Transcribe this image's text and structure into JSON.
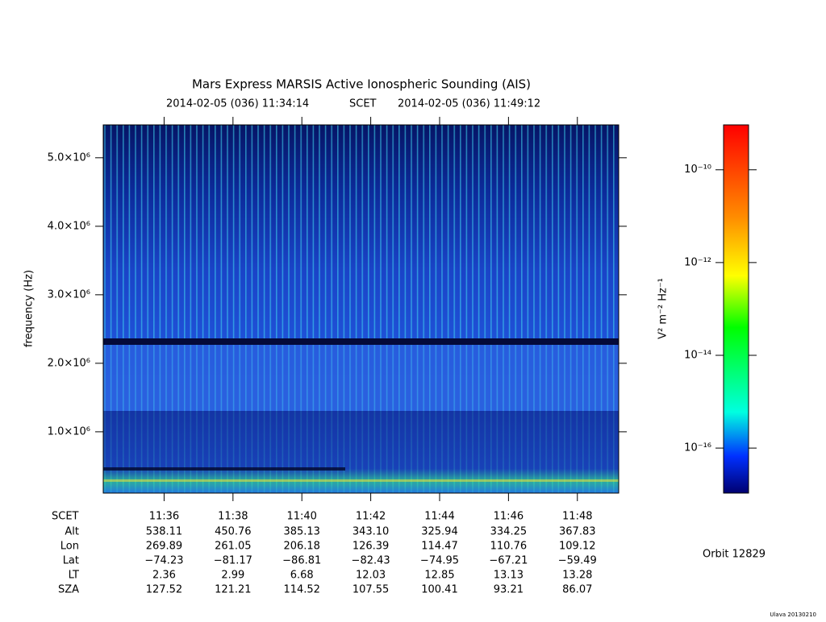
{
  "chart_data": {
    "type": "spectrogram",
    "title": "Mars Express MARSIS Active Ionospheric Sounding (AIS)",
    "start_time": "2014-02-05 (036) 11:34:14",
    "time_label": "SCET",
    "end_time": "2014-02-05 (036) 11:49:12",
    "y_label": "frequency (Hz)",
    "xlim": [
      34.233,
      49.2
    ],
    "xticks": [
      {
        "value": 36,
        "label": "11:36"
      },
      {
        "value": 38,
        "label": "11:38"
      },
      {
        "value": 40,
        "label": "11:40"
      },
      {
        "value": 42,
        "label": "11:42"
      },
      {
        "value": 44,
        "label": "11:44"
      },
      {
        "value": 46,
        "label": "11:46"
      },
      {
        "value": 48,
        "label": "11:48"
      }
    ],
    "ylim": [
      105000,
      5480000
    ],
    "yticks": [
      {
        "value": 1000000,
        "label": "1.0×10⁶"
      },
      {
        "value": 2000000,
        "label": "2.0×10⁶"
      },
      {
        "value": 3000000,
        "label": "3.0×10⁶"
      },
      {
        "value": 4000000,
        "label": "4.0×10⁶"
      },
      {
        "value": 5000000,
        "label": "5.0×10⁶"
      }
    ],
    "colorbar": {
      "label": "V² m⁻² Hz⁻¹",
      "log_scale": true,
      "zlim": [
        1.07e-17,
        9.3e-10
      ],
      "zticks": [
        {
          "value": 1e-16,
          "label": "10⁻¹⁶"
        },
        {
          "value": 1e-14,
          "label": "10⁻¹⁴"
        },
        {
          "value": 1e-12,
          "label": "10⁻¹²"
        },
        {
          "value": 1e-10,
          "label": "10⁻¹⁰"
        }
      ]
    },
    "ephemeris": {
      "rows": [
        {
          "label": "Alt",
          "values": [
            "538.11",
            "450.76",
            "385.13",
            "343.10",
            "325.94",
            "334.25",
            "367.83"
          ]
        },
        {
          "label": "Lon",
          "values": [
            "269.89",
            "261.05",
            "206.18",
            "126.39",
            "114.47",
            "110.76",
            "109.12"
          ]
        },
        {
          "label": "Lat",
          "values": [
            "−74.23",
            "−81.17",
            "−86.81",
            "−82.43",
            "−74.95",
            "−67.21",
            "−59.49"
          ]
        },
        {
          "label": "LT",
          "values": [
            "2.36",
            "2.99",
            "6.68",
            "12.03",
            "12.85",
            "13.13",
            "13.28"
          ]
        },
        {
          "label": "SZA",
          "values": [
            "127.52",
            "121.21",
            "114.52",
            "107.55",
            "100.41",
            "93.21",
            "86.07"
          ]
        }
      ]
    },
    "orbit": "Orbit 12829",
    "footer": "Ulava 20130210"
  }
}
